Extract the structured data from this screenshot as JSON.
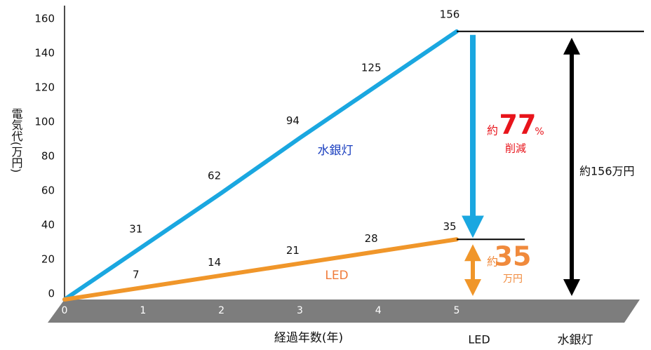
{
  "chart_data": {
    "type": "line",
    "y_axis_label": "電気代(万円)",
    "x_axis_label": "経過年数(年)",
    "x": [
      0,
      1,
      2,
      3,
      4,
      5
    ],
    "xlim": [
      0,
      5
    ],
    "xticks": [
      0,
      1,
      2,
      3,
      4,
      5
    ],
    "ylim": [
      0,
      160
    ],
    "yticks": [
      0,
      20,
      40,
      60,
      80,
      100,
      120,
      140,
      160
    ],
    "series": [
      {
        "name": "水銀灯",
        "color": "#1aa7e0",
        "label_color": "#1a3fbf",
        "values": [
          0,
          31,
          62,
          94,
          125,
          156
        ]
      },
      {
        "name": "LED",
        "color": "#f0962a",
        "label_color": "#f07b3a",
        "values": [
          0,
          7,
          14,
          21,
          28,
          35
        ]
      }
    ],
    "reduction": {
      "prefix": "約",
      "value": 77,
      "unit": "%",
      "label": "削減"
    },
    "led_total": {
      "prefix": "約",
      "value": 35,
      "unit": "万円"
    },
    "mercury_total": "約156万円",
    "comparison_labels": [
      "LED",
      "水銀灯"
    ]
  }
}
